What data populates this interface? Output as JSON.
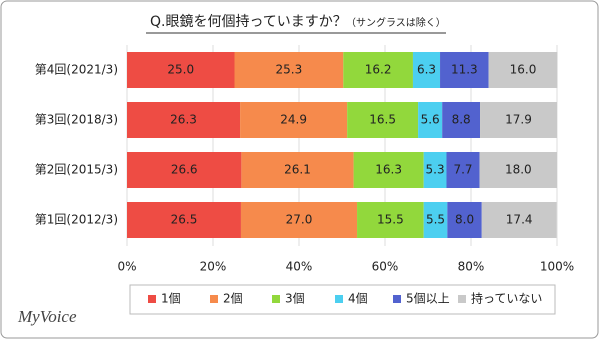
{
  "chart_data": {
    "type": "stacked-bar-horizontal",
    "title": "Q.眼鏡を何個持っていますか？",
    "subtitle": "（サングラスは除く）",
    "logo": "MyVoice",
    "categories": [
      "第4回(2021/3)",
      "第3回(2018/3)",
      "第2回(2015/3)",
      "第1回(2012/3)"
    ],
    "series": [
      {
        "name": "1個",
        "color": "#ee4c44",
        "values": [
          25.0,
          26.3,
          26.6,
          26.5
        ],
        "value_labels": [
          "25.0",
          "26.3",
          "26.6",
          "26.5"
        ]
      },
      {
        "name": "2個",
        "color": "#f68a4c",
        "values": [
          25.3,
          24.9,
          26.1,
          27.0
        ],
        "value_labels": [
          "25.3",
          "24.9",
          "26.1",
          "27.0"
        ]
      },
      {
        "name": "3個",
        "color": "#92d83c",
        "values": [
          16.2,
          16.5,
          16.3,
          15.5
        ],
        "value_labels": [
          "16.2",
          "16.5",
          "16.3",
          "15.5"
        ]
      },
      {
        "name": "4個",
        "color": "#4ccff0",
        "values": [
          6.3,
          5.6,
          5.3,
          5.5
        ],
        "value_labels": [
          "6.3",
          "5.6",
          "5.3",
          "5.5"
        ]
      },
      {
        "name": "5個以上",
        "color": "#5262cf",
        "values": [
          11.3,
          8.8,
          7.7,
          8.0
        ],
        "value_labels": [
          "11.3",
          "8.8",
          "7.7",
          "8.0"
        ]
      },
      {
        "name": "持っていない",
        "color": "#c9c9c9",
        "values": [
          16.0,
          17.9,
          18.0,
          17.4
        ],
        "value_labels": [
          "16.0",
          "17.9",
          "18.0",
          "17.4"
        ]
      }
    ],
    "xlim": [
      0,
      100
    ],
    "xticks": [
      {
        "value": 0,
        "label": "0%"
      },
      {
        "value": 20,
        "label": "20%"
      },
      {
        "value": 40,
        "label": "40%"
      },
      {
        "value": 60,
        "label": "60%"
      },
      {
        "value": 80,
        "label": "80%"
      },
      {
        "value": 100,
        "label": "100%"
      }
    ],
    "grid": true,
    "legend": "bottom"
  }
}
